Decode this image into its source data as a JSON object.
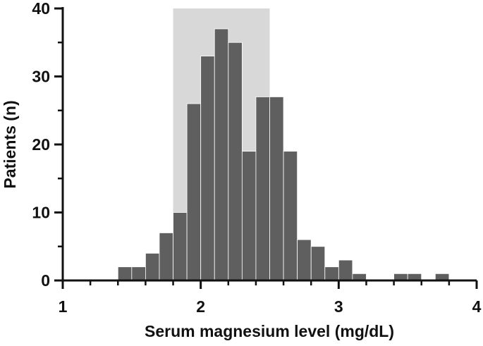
{
  "chart_data": {
    "type": "bar",
    "title": "",
    "xlabel": "Serum magnesium level (mg/dL)",
    "ylabel": "Patients (n)",
    "xlim": [
      1,
      4
    ],
    "ylim": [
      0,
      40
    ],
    "x_ticks": [
      "1",
      "2",
      "3",
      "4"
    ],
    "y_ticks": [
      "0",
      "10",
      "20",
      "30",
      "40"
    ],
    "grid": false,
    "bin_width": 0.1,
    "bins": [
      {
        "x": 1.45,
        "value": 2
      },
      {
        "x": 1.55,
        "value": 2
      },
      {
        "x": 1.65,
        "value": 4
      },
      {
        "x": 1.75,
        "value": 7
      },
      {
        "x": 1.85,
        "value": 10
      },
      {
        "x": 1.95,
        "value": 26
      },
      {
        "x": 2.05,
        "value": 33
      },
      {
        "x": 2.15,
        "value": 37
      },
      {
        "x": 2.25,
        "value": 35
      },
      {
        "x": 2.35,
        "value": 19
      },
      {
        "x": 2.45,
        "value": 27
      },
      {
        "x": 2.55,
        "value": 27
      },
      {
        "x": 2.65,
        "value": 19
      },
      {
        "x": 2.75,
        "value": 6
      },
      {
        "x": 2.85,
        "value": 5
      },
      {
        "x": 2.95,
        "value": 2
      },
      {
        "x": 3.05,
        "value": 3
      },
      {
        "x": 3.15,
        "value": 1
      },
      {
        "x": 3.45,
        "value": 1
      },
      {
        "x": 3.55,
        "value": 1
      },
      {
        "x": 3.75,
        "value": 1
      }
    ],
    "reference_range": {
      "from": 1.8,
      "to": 2.5
    },
    "colors": {
      "bars": "#5f5f5f",
      "range": "#d8d8d8",
      "axis": "#111111"
    }
  }
}
